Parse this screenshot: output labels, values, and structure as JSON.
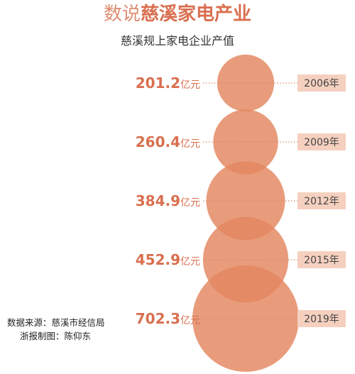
{
  "title": {
    "part1": "数说",
    "part2": "慈溪家电产业"
  },
  "chart_data": {
    "type": "bubble",
    "title": "慈溪规上家电企业产值",
    "unit": "亿元",
    "categories": [
      "2006年",
      "2009年",
      "2012年",
      "2015年",
      "2019年"
    ],
    "values": [
      201.2,
      260.4,
      384.9,
      452.9,
      702.3
    ],
    "value_labels": [
      "201.2",
      "260.4",
      "384.9",
      "452.9",
      "702.3"
    ],
    "legend": "none",
    "grid": false
  },
  "colors": {
    "bubble": "#e3865f",
    "label": "#d96f4f",
    "tag_fill": "#f5d0bf",
    "tag_text": "#444444",
    "dotted_line": "#d98a6a"
  },
  "source": {
    "data_source": "数据来源：慈溪市经信局",
    "credit": "浙报制图：陈仰东"
  }
}
